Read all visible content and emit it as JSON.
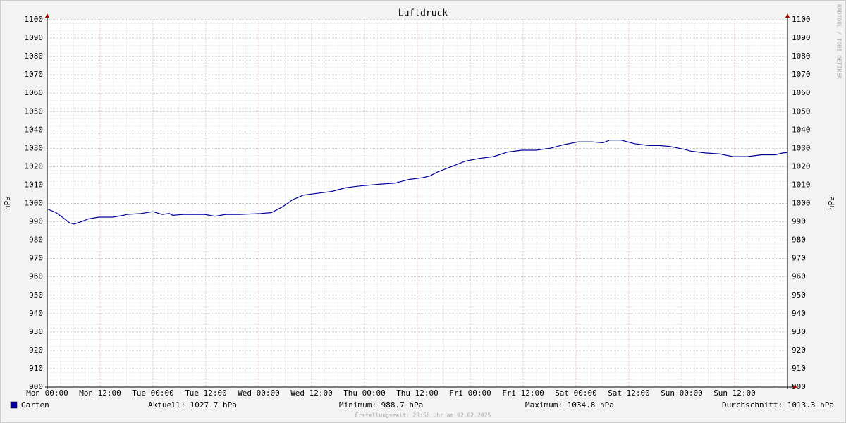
{
  "chart_data": {
    "type": "line",
    "title": "Luftdruck",
    "y_label": "hPa",
    "watermark": "RRDTOOL / TOBI OETIKER",
    "x": [
      0,
      2,
      3.7,
      5,
      6.1,
      7.7,
      9.3,
      11.7,
      14.9,
      17.3,
      18.1,
      21.3,
      24,
      26.1,
      27.7,
      28.5,
      30.9,
      35.7,
      38.1,
      40.5,
      43.7,
      48.5,
      50.9,
      53.3,
      55.7,
      58.1,
      61.3,
      64.5,
      67.7,
      70.9,
      75.7,
      78.9,
      82.1,
      85.3,
      86.9,
      88.5,
      91.7,
      94.9,
      98.1,
      101.3,
      104.5,
      107.7,
      110.9,
      114.1,
      117.3,
      120.5,
      123.7,
      126.1,
      127.7,
      130.1,
      133.3,
      136.5,
      138.9,
      141.3,
      144.5,
      146.1,
      149.3,
      152.5,
      155.7,
      158.9,
      162.1,
      165.3,
      166.9,
      168
    ],
    "series": [
      {
        "name": "Garten",
        "color": "#000099",
        "values": [
          997,
          995,
          992,
          989.5,
          988.7,
          990,
          991.5,
          992.5,
          992.5,
          993.5,
          994,
          994.5,
          995.5,
          994,
          994.5,
          993.5,
          994,
          994,
          993,
          994,
          994,
          994.5,
          995,
          998,
          1002,
          1004.5,
          1005.5,
          1006.5,
          1008.5,
          1009.5,
          1010.5,
          1011,
          1013,
          1014,
          1015,
          1017,
          1020,
          1023,
          1024.5,
          1025.5,
          1028,
          1029,
          1029,
          1030,
          1032,
          1033.5,
          1033.5,
          1033,
          1034.5,
          1034.5,
          1032.5,
          1031.5,
          1031.5,
          1031,
          1029.5,
          1028.5,
          1027.5,
          1027,
          1025.5,
          1025.5,
          1026.5,
          1026.5,
          1027.5,
          1027.7
        ]
      }
    ],
    "xlim": [
      0,
      168
    ],
    "xticks": [
      {
        "value": 0,
        "label": "Mon 00:00"
      },
      {
        "value": 12,
        "label": "Mon 12:00"
      },
      {
        "value": 24,
        "label": "Tue 00:00"
      },
      {
        "value": 36,
        "label": "Tue 12:00"
      },
      {
        "value": 48,
        "label": "Wed 00:00"
      },
      {
        "value": 60,
        "label": "Wed 12:00"
      },
      {
        "value": 72,
        "label": "Thu 00:00"
      },
      {
        "value": 84,
        "label": "Thu 12:00"
      },
      {
        "value": 96,
        "label": "Fri 00:00"
      },
      {
        "value": 108,
        "label": "Fri 12:00"
      },
      {
        "value": 120,
        "label": "Sat 00:00"
      },
      {
        "value": 132,
        "label": "Sat 12:00"
      },
      {
        "value": 144,
        "label": "Sun 00:00"
      },
      {
        "value": 156,
        "label": "Sun 12:00"
      }
    ],
    "ylim": [
      900,
      1100
    ],
    "yticks": [
      900,
      910,
      920,
      930,
      940,
      950,
      960,
      970,
      980,
      990,
      1000,
      1010,
      1020,
      1030,
      1040,
      1050,
      1060,
      1070,
      1080,
      1090,
      1100
    ],
    "grid": true,
    "stats": [
      "Aktuell: 1027.7 hPa",
      "Minimum: 988.7 hPa",
      "Maximum: 1034.8 hPa",
      "Durchschnitt: 1013.3 hPa"
    ],
    "footer": "Erstellungszeit: 23:58 Uhr am 02.02.2025"
  }
}
